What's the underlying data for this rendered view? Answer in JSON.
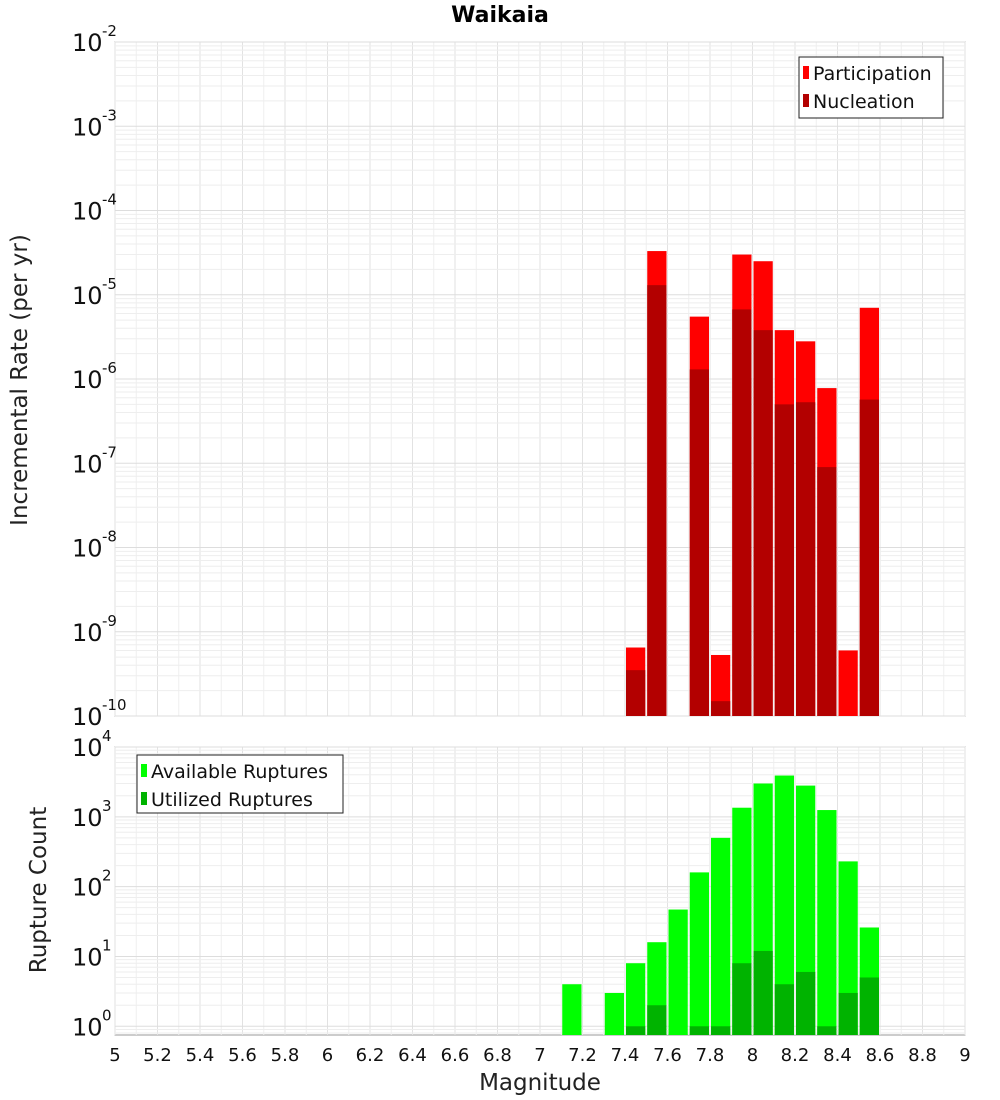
{
  "chart_data": [
    {
      "type": "bar",
      "title": "Waikaia",
      "xlabel": "",
      "ylabel": "Incremental Rate (per yr)",
      "yscale": "log",
      "ylim": [
        1e-10,
        0.01
      ],
      "xlim": [
        5,
        9
      ],
      "bar_width": 0.1,
      "legend_position": "top-right",
      "y_ticks": [
        {
          "base": "10",
          "exp": "-2"
        },
        {
          "base": "10",
          "exp": "-3"
        },
        {
          "base": "10",
          "exp": "-4"
        },
        {
          "base": "10",
          "exp": "-5"
        },
        {
          "base": "10",
          "exp": "-6"
        },
        {
          "base": "10",
          "exp": "-7"
        },
        {
          "base": "10",
          "exp": "-8"
        },
        {
          "base": "10",
          "exp": "-9"
        },
        {
          "base": "10",
          "exp": "-10"
        }
      ],
      "x": [
        7.45,
        7.55,
        7.75,
        7.85,
        7.95,
        8.05,
        8.15,
        8.25,
        8.35,
        8.45,
        8.55
      ],
      "series": [
        {
          "name": "Participation",
          "color": "#ff0000",
          "values": [
            6.5e-10,
            3.3e-05,
            5.5e-06,
            5.3e-10,
            3e-05,
            2.5e-05,
            3.8e-06,
            2.8e-06,
            7.8e-07,
            6e-10,
            7e-06
          ]
        },
        {
          "name": "Nucleation",
          "color": "#b30000",
          "values": [
            3.5e-10,
            1.3e-05,
            1.3e-06,
            1.5e-10,
            6.7e-06,
            3.8e-06,
            5e-07,
            5.3e-07,
            9e-08,
            null,
            5.7e-07
          ]
        }
      ]
    },
    {
      "type": "bar",
      "title": "",
      "xlabel": "Magnitude",
      "ylabel": "Rupture Count",
      "yscale": "log",
      "ylim": [
        0.75,
        10000
      ],
      "xlim": [
        5,
        9
      ],
      "bar_width": 0.1,
      "legend_position": "top-left",
      "y_ticks": [
        {
          "base": "10",
          "exp": "4"
        },
        {
          "base": "10",
          "exp": "3"
        },
        {
          "base": "10",
          "exp": "2"
        },
        {
          "base": "10",
          "exp": "1"
        },
        {
          "base": "10",
          "exp": "0"
        }
      ],
      "x_tick_labels": [
        "5",
        "5.2",
        "5.4",
        "5.6",
        "5.8",
        "6",
        "6.2",
        "6.4",
        "6.6",
        "6.8",
        "7",
        "7.2",
        "7.4",
        "7.6",
        "7.8",
        "8",
        "8.2",
        "8.4",
        "8.6",
        "8.8",
        "9"
      ],
      "x": [
        7.15,
        7.35,
        7.45,
        7.55,
        7.65,
        7.75,
        7.85,
        7.95,
        8.05,
        8.15,
        8.25,
        8.35,
        8.45,
        8.55
      ],
      "series": [
        {
          "name": "Available Ruptures",
          "color": "#00ff00",
          "values": [
            4,
            3,
            8,
            16,
            47,
            160,
            500,
            1350,
            3000,
            3900,
            2800,
            1250,
            230,
            26
          ]
        },
        {
          "name": "Utilized Ruptures",
          "color": "#00b300",
          "values": [
            null,
            null,
            1,
            2,
            null,
            1,
            1,
            8,
            12,
            4,
            6,
            1,
            3,
            5
          ]
        }
      ]
    }
  ]
}
